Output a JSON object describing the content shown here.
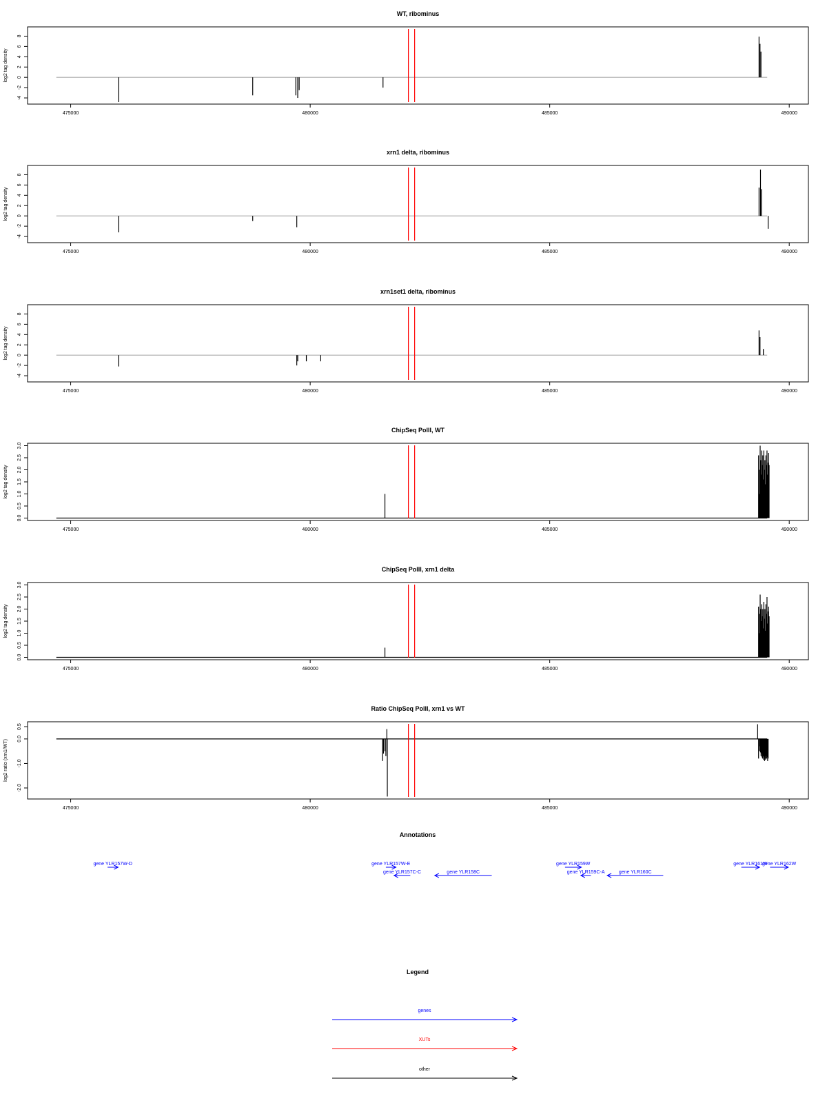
{
  "chart_data": [
    {
      "type": "line",
      "title": "WT, ribominus",
      "ylabel": "log2 tag density",
      "xlim": [
        474100,
        490400
      ],
      "ylim": [
        -5.2,
        9.8
      ],
      "yticks": [
        8,
        6,
        4,
        2,
        0,
        -2,
        -4
      ],
      "ytick_labels": [
        "8",
        "6",
        "4",
        "2",
        "0",
        "-2",
        "-4"
      ],
      "xticks": [
        475000,
        480000,
        485000,
        490000
      ],
      "xtick_labels": [
        "475000",
        "480000",
        "485000",
        "490000"
      ],
      "baseline": {
        "y": 0,
        "from": 474700,
        "to": 489540,
        "color": "#aaaaaa"
      },
      "spikes": [
        {
          "x": 476000,
          "y": -4.8
        },
        {
          "x": 478800,
          "y": -3.5
        },
        {
          "x": 479700,
          "y": -3.5
        },
        {
          "x": 479740,
          "y": -4.0
        },
        {
          "x": 479770,
          "y": -2.5
        },
        {
          "x": 481520,
          "y": -2.0
        },
        {
          "x": 489370,
          "y": 7.9
        },
        {
          "x": 489390,
          "y": 6.5
        },
        {
          "x": 489410,
          "y": 5.0
        }
      ],
      "red_lines": [
        482050,
        482180
      ]
    },
    {
      "type": "line",
      "title": "xrn1 delta, ribominus",
      "ylabel": "log2 tag density",
      "xlim": [
        474100,
        490400
      ],
      "ylim": [
        -5.2,
        9.8
      ],
      "yticks": [
        8,
        6,
        4,
        2,
        0,
        -2,
        -4
      ],
      "ytick_labels": [
        "8",
        "6",
        "4",
        "2",
        "0",
        "-2",
        "-4"
      ],
      "xticks": [
        475000,
        480000,
        485000,
        490000
      ],
      "xtick_labels": [
        "475000",
        "480000",
        "485000",
        "490000"
      ],
      "baseline": {
        "y": 0,
        "from": 474700,
        "to": 489540,
        "color": "#aaaaaa"
      },
      "spikes": [
        {
          "x": 476000,
          "y": -3.2
        },
        {
          "x": 478800,
          "y": -1.0
        },
        {
          "x": 479720,
          "y": -2.2
        },
        {
          "x": 489370,
          "y": 5.5
        },
        {
          "x": 489400,
          "y": 9.0
        },
        {
          "x": 489420,
          "y": 5.2
        },
        {
          "x": 489560,
          "y": -2.5
        }
      ],
      "red_lines": [
        482050,
        482180
      ]
    },
    {
      "type": "line",
      "title": "xrn1set1 delta, ribominus",
      "ylabel": "log2 tag density",
      "xlim": [
        474100,
        490400
      ],
      "ylim": [
        -5.2,
        9.8
      ],
      "yticks": [
        8,
        6,
        4,
        2,
        0,
        -2,
        -4
      ],
      "ytick_labels": [
        "8",
        "6",
        "4",
        "2",
        "0",
        "-2",
        "-4"
      ],
      "xticks": [
        475000,
        480000,
        485000,
        490000
      ],
      "xtick_labels": [
        "475000",
        "480000",
        "485000",
        "490000"
      ],
      "baseline": {
        "y": 0,
        "from": 474700,
        "to": 489540,
        "color": "#aaaaaa"
      },
      "spikes": [
        {
          "x": 476000,
          "y": -2.2
        },
        {
          "x": 479720,
          "y": -2.0
        },
        {
          "x": 479740,
          "y": -1.2
        },
        {
          "x": 479920,
          "y": -1.2
        },
        {
          "x": 480220,
          "y": -1.2
        },
        {
          "x": 489370,
          "y": 4.8
        },
        {
          "x": 489390,
          "y": 3.5
        },
        {
          "x": 489460,
          "y": 1.2
        }
      ],
      "red_lines": [
        482050,
        482180
      ]
    },
    {
      "type": "line",
      "title": "ChipSeq PolII, WT",
      "ylabel": "log2 tag density",
      "xlim": [
        474100,
        490400
      ],
      "ylim": [
        -0.1,
        3.1
      ],
      "yticks": [
        3.0,
        2.5,
        2.0,
        1.5,
        1.0,
        0.5,
        0.0
      ],
      "ytick_labels": [
        "3.0",
        "2.5",
        "2.0",
        "1.5",
        "1.0",
        "0.5",
        "0.0"
      ],
      "xticks": [
        475000,
        480000,
        485000,
        490000
      ],
      "xtick_labels": [
        "475000",
        "480000",
        "485000",
        "490000"
      ],
      "baseline": {
        "y": 0,
        "from": 474700,
        "to": 489540,
        "color": "#000000"
      },
      "spikes": [
        {
          "x": 481560,
          "y": 1.0
        }
      ],
      "block": {
        "from": 489360,
        "to": 489580,
        "heights": [
          2.6,
          1.0,
          2.0,
          3.0,
          2.4,
          1.8,
          2.8,
          2.2,
          2.6,
          1.6,
          2.8,
          2.0,
          2.4,
          1.4,
          2.6,
          2.2,
          2.8,
          1.8,
          2.3,
          2.7,
          2.2
        ]
      },
      "red_lines": [
        482050,
        482180
      ]
    },
    {
      "type": "line",
      "title": "ChipSeq PolII, xrn1 delta",
      "ylabel": "log2 tag density",
      "xlim": [
        474100,
        490400
      ],
      "ylim": [
        -0.1,
        3.1
      ],
      "yticks": [
        3.0,
        2.5,
        2.0,
        1.5,
        1.0,
        0.5,
        0.0
      ],
      "ytick_labels": [
        "3.0",
        "2.5",
        "2.0",
        "1.5",
        "1.0",
        "0.5",
        "0.0"
      ],
      "xticks": [
        475000,
        480000,
        485000,
        490000
      ],
      "xtick_labels": [
        "475000",
        "480000",
        "485000",
        "490000"
      ],
      "baseline": {
        "y": 0,
        "from": 474700,
        "to": 489540,
        "color": "#000000"
      },
      "spikes": [
        {
          "x": 481560,
          "y": 0.4
        }
      ],
      "block": {
        "from": 489360,
        "to": 489580,
        "heights": [
          2.1,
          1.0,
          1.8,
          2.6,
          2.0,
          1.5,
          2.2,
          1.7,
          2.0,
          1.2,
          2.3,
          1.6,
          2.0,
          1.1,
          2.2,
          1.8,
          2.5,
          1.4,
          1.9,
          2.1,
          1.7
        ]
      },
      "red_lines": [
        482050,
        482180
      ]
    },
    {
      "type": "line",
      "title": "Ratio ChipSeq PolII, xrn1 vs WT",
      "ylabel": "log2 ratio (xrn1/WT)",
      "xlim": [
        474100,
        490400
      ],
      "ylim": [
        -2.45,
        0.7
      ],
      "yticks": [
        0.5,
        0.0,
        -1.0,
        -2.0
      ],
      "ytick_labels": [
        "0.5",
        "0.0",
        "-1.0",
        "-2.0"
      ],
      "xticks": [
        475000,
        480000,
        485000,
        490000
      ],
      "xtick_labels": [
        "475000",
        "480000",
        "485000",
        "490000"
      ],
      "baseline": {
        "y": 0,
        "from": 474700,
        "to": 489540,
        "color": "#000000"
      },
      "spikes": [
        {
          "x": 481510,
          "y": -0.9
        },
        {
          "x": 481530,
          "y": -0.6
        },
        {
          "x": 481560,
          "y": -0.5
        },
        {
          "x": 481580,
          "y": -0.7
        },
        {
          "x": 481600,
          "y": 0.4
        },
        {
          "x": 481610,
          "y": -2.35
        },
        {
          "x": 489340,
          "y": 0.6
        },
        {
          "x": 489360,
          "y": -0.8
        }
      ],
      "block": {
        "from": 489380,
        "to": 489560,
        "heights": [
          -0.5,
          -0.3,
          -0.55,
          -0.7,
          -0.6,
          -0.75,
          -0.8,
          -0.7,
          -0.85,
          -0.75,
          -0.9,
          -0.8,
          -0.85,
          -0.7,
          -0.8,
          -0.75,
          -0.9,
          -0.8
        ]
      },
      "red_lines": [
        482050,
        482180
      ]
    }
  ],
  "annotations": {
    "title": "Annotations",
    "genes": [
      {
        "label": "gene YLR157W-D",
        "start": 475770,
        "end": 475990,
        "dir": "+",
        "row": 0
      },
      {
        "label": "gene YLR157W-E",
        "start": 481580,
        "end": 481790,
        "dir": "+",
        "row": 0
      },
      {
        "label": "gene YLR157C-C",
        "start": 481750,
        "end": 482090,
        "dir": "-",
        "row": 1
      },
      {
        "label": "gene YLR158C",
        "start": 482600,
        "end": 483790,
        "dir": "-",
        "row": 1
      },
      {
        "label": "gene YLR159W",
        "start": 485320,
        "end": 485660,
        "dir": "+",
        "row": 0
      },
      {
        "label": "gene YLR159C-A",
        "start": 485650,
        "end": 485860,
        "dir": "-",
        "row": 1
      },
      {
        "label": "gene YLR160C",
        "start": 486200,
        "end": 487370,
        "dir": "-",
        "row": 1
      },
      {
        "label": "gene YLR161W",
        "start": 489000,
        "end": 489380,
        "dir": "+",
        "row": 0
      },
      {
        "label": "gene YLR162W",
        "start": 489600,
        "end": 489980,
        "dir": "+",
        "row": 0
      }
    ]
  },
  "legend": {
    "title": "Legend",
    "items": [
      {
        "label": "genes",
        "color": "#0000ff"
      },
      {
        "label": "XUTs",
        "color": "#ff0000"
      },
      {
        "label": "other",
        "color": "#000000"
      }
    ]
  },
  "colors": {
    "gene": "#0000ff",
    "xut": "#ff0000",
    "other": "#000000",
    "baseline_grey": "#aaaaaa"
  }
}
